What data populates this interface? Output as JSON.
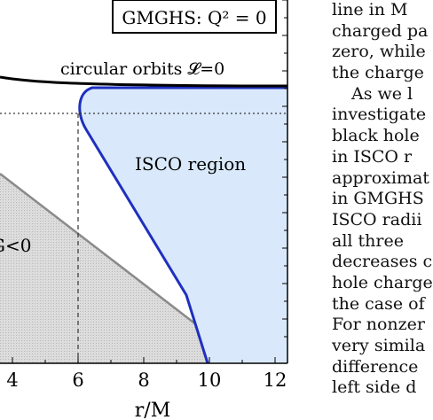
{
  "figure": {
    "title": "GMGHS: Q² = 0",
    "curve_label": "circular orbits 𝓛=0",
    "region_label": "ISCO region",
    "left_region_label": "G<0",
    "xlabel": "r/M",
    "x_ticks": [
      "4",
      "6",
      "8",
      "10",
      "12"
    ]
  },
  "chart_data": {
    "type": "line",
    "title": "GMGHS: Q² = 0",
    "xlabel": "r/M",
    "ylabel": "",
    "xlim": [
      3.6,
      12.2
    ],
    "x_ticks": [
      4,
      6,
      8,
      10,
      12
    ],
    "y_ticks": [],
    "grid": false,
    "series": [
      {
        "name": "circular orbits 𝓛=0",
        "x": [
          3.6,
          4,
          6,
          8,
          10,
          12.2
        ],
        "y": [
          0.68,
          0.645,
          0.615,
          0.605,
          0.6,
          0.595
        ]
      },
      {
        "name": "ISCO region",
        "x": [
          6.1,
          6.0,
          6.2,
          7.4,
          9.1,
          9.9
        ],
        "y": [
          0.535,
          0.5,
          0.44,
          0.29,
          0.09,
          0.0
        ]
      },
      {
        "name": "G<0",
        "x": [
          3.6,
          11.0
        ],
        "y": [
          0.36,
          0.0
        ]
      }
    ],
    "reference_lines": [
      {
        "x": 6,
        "style": "dashed"
      },
      {
        "y": 0.515,
        "style": "dotted"
      }
    ]
  },
  "side_text": [
    {
      "text": "line in M",
      "indent": false
    },
    {
      "text": "charged pa",
      "indent": false
    },
    {
      "text": "zero, while",
      "indent": false
    },
    {
      "text": "the charge",
      "indent": false
    },
    {
      "text": "As we l",
      "indent": true
    },
    {
      "text": "investigate",
      "indent": false
    },
    {
      "text": "black hole",
      "indent": false
    },
    {
      "text": "in ISCO r",
      "indent": false
    },
    {
      "text": "approximat",
      "indent": false
    },
    {
      "text": "in GMGHS",
      "indent": false
    },
    {
      "text": "ISCO radii",
      "indent": false
    },
    {
      "text": "all three",
      "indent": false
    },
    {
      "text": "decreases c",
      "indent": false
    },
    {
      "text": "hole charge",
      "indent": false
    },
    {
      "text": "the case of",
      "indent": false
    },
    {
      "text": "For nonzer",
      "indent": false
    },
    {
      "text": "very simila",
      "indent": false
    },
    {
      "text": "difference",
      "indent": false
    },
    {
      "text": "left side d",
      "indent": false
    }
  ]
}
